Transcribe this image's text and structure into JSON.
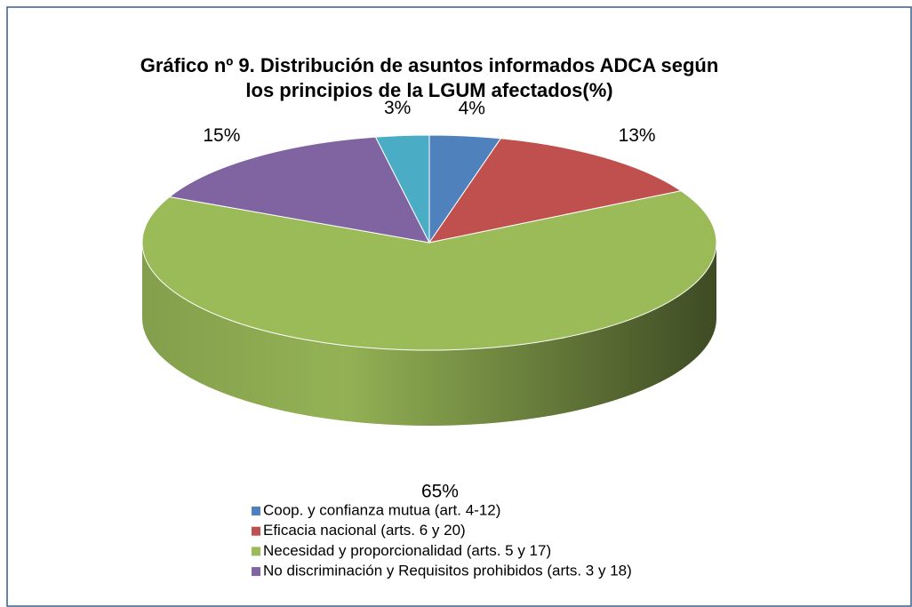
{
  "chart_data": {
    "type": "pie",
    "title": "Gráfico nº 9.  Distribución de asuntos informados ADCA  según los principios de la LGUM afectados(%)",
    "categories": [
      "Coop. y confianza mutua (art. 4-12)",
      "Eficacia nacional (arts. 6 y 20)",
      "Necesidad y proporcionalidad (arts. 5 y 17)",
      "No discriminación y Requisitos prohibidos (arts. 3 y 18)",
      null
    ],
    "values": [
      4,
      13,
      65,
      15,
      3
    ],
    "value_labels": [
      "4%",
      "13%",
      "65%",
      "15%",
      "3%"
    ],
    "colors": [
      "#4f81bd",
      "#c0504d",
      "#9bbb59",
      "#8064a2",
      "#4bacc6"
    ],
    "legend": "bottom"
  }
}
